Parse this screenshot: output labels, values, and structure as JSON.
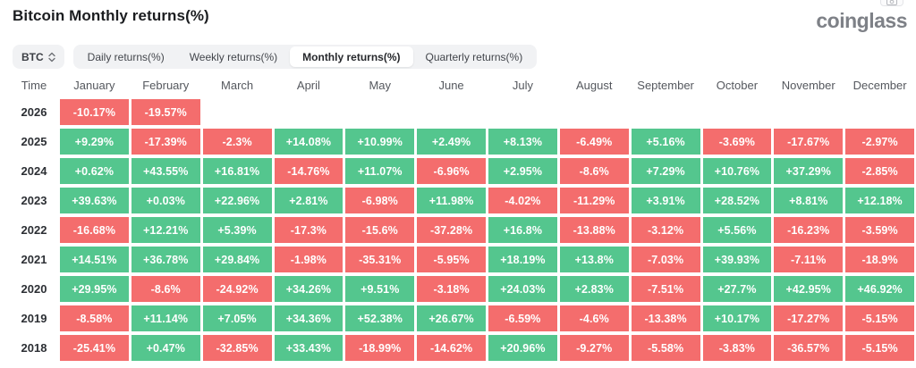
{
  "header": {
    "title": "Bitcoin Monthly returns(%)",
    "logo_text": "coinglass"
  },
  "controls": {
    "symbol_select": {
      "value": "BTC"
    },
    "tabs": [
      {
        "label": "Daily returns(%)",
        "active": false
      },
      {
        "label": "Weekly returns(%)",
        "active": false
      },
      {
        "label": "Monthly returns(%)",
        "active": true
      },
      {
        "label": "Quarterly returns(%)",
        "active": false
      }
    ]
  },
  "colors": {
    "positive": "#54c68e",
    "negative": "#f46d6d"
  },
  "chart_data": {
    "type": "heatmap",
    "title": "Bitcoin Monthly returns(%)",
    "columns": [
      "Time",
      "January",
      "February",
      "March",
      "April",
      "May",
      "June",
      "July",
      "August",
      "September",
      "October",
      "November",
      "December"
    ],
    "rows": [
      {
        "year": "2026",
        "values": [
          "-10.17%",
          "-19.57%",
          null,
          null,
          null,
          null,
          null,
          null,
          null,
          null,
          null,
          null
        ]
      },
      {
        "year": "2025",
        "values": [
          "+9.29%",
          "-17.39%",
          "-2.3%",
          "+14.08%",
          "+10.99%",
          "+2.49%",
          "+8.13%",
          "-6.49%",
          "+5.16%",
          "-3.69%",
          "-17.67%",
          "-2.97%"
        ]
      },
      {
        "year": "2024",
        "values": [
          "+0.62%",
          "+43.55%",
          "+16.81%",
          "-14.76%",
          "+11.07%",
          "-6.96%",
          "+2.95%",
          "-8.6%",
          "+7.29%",
          "+10.76%",
          "+37.29%",
          "-2.85%"
        ]
      },
      {
        "year": "2023",
        "values": [
          "+39.63%",
          "+0.03%",
          "+22.96%",
          "+2.81%",
          "-6.98%",
          "+11.98%",
          "-4.02%",
          "-11.29%",
          "+3.91%",
          "+28.52%",
          "+8.81%",
          "+12.18%"
        ]
      },
      {
        "year": "2022",
        "values": [
          "-16.68%",
          "+12.21%",
          "+5.39%",
          "-17.3%",
          "-15.6%",
          "-37.28%",
          "+16.8%",
          "-13.88%",
          "-3.12%",
          "+5.56%",
          "-16.23%",
          "-3.59%"
        ]
      },
      {
        "year": "2021",
        "values": [
          "+14.51%",
          "+36.78%",
          "+29.84%",
          "-1.98%",
          "-35.31%",
          "-5.95%",
          "+18.19%",
          "+13.8%",
          "-7.03%",
          "+39.93%",
          "-7.11%",
          "-18.9%"
        ]
      },
      {
        "year": "2020",
        "values": [
          "+29.95%",
          "-8.6%",
          "-24.92%",
          "+34.26%",
          "+9.51%",
          "-3.18%",
          "+24.03%",
          "+2.83%",
          "-7.51%",
          "+27.7%",
          "+42.95%",
          "+46.92%"
        ]
      },
      {
        "year": "2019",
        "values": [
          "-8.58%",
          "+11.14%",
          "+7.05%",
          "+34.36%",
          "+52.38%",
          "+26.67%",
          "-6.59%",
          "-4.6%",
          "-13.38%",
          "+10.17%",
          "-17.27%",
          "-5.15%"
        ]
      },
      {
        "year": "2018",
        "values": [
          "-25.41%",
          "+0.47%",
          "-32.85%",
          "+33.43%",
          "-18.99%",
          "-14.62%",
          "+20.96%",
          "-9.27%",
          "-5.58%",
          "-3.83%",
          "-36.57%",
          "-5.15%"
        ]
      }
    ]
  }
}
